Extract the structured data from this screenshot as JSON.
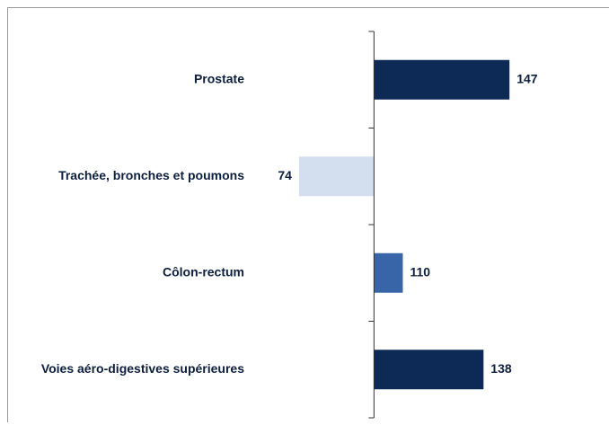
{
  "chart_data": {
    "type": "bar",
    "orientation": "horizontal",
    "categories": [
      "Prostate",
      "Trachée, bronches et poumons",
      "Côlon-rectum",
      "Voies aéro-digestives supérieures"
    ],
    "values": [
      147,
      74,
      110,
      138
    ],
    "colors": [
      "#0c2a55",
      "#d3deef",
      "#3865a8",
      "#0c2a55"
    ],
    "baseline": 100,
    "xlim": [
      60,
      170
    ]
  }
}
